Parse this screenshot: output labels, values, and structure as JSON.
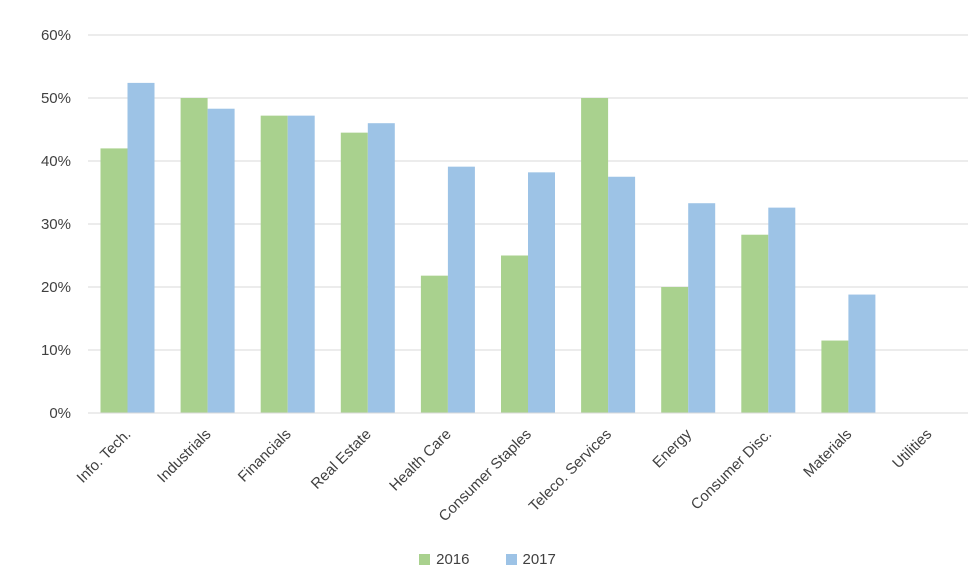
{
  "chart_data": {
    "type": "bar",
    "title": "",
    "xlabel": "",
    "ylabel": "",
    "categories": [
      "Info. Tech.",
      "Industrials",
      "Financials",
      "Real Estate",
      "Health Care",
      "Consumer Staples",
      "Teleco. Services",
      "Energy",
      "Consumer Disc.",
      "Materials",
      "Utilities"
    ],
    "series": [
      {
        "name": "2016",
        "color": "#a9d18e",
        "values": [
          42,
          50,
          47.2,
          44.5,
          21.8,
          25,
          50,
          20,
          28.3,
          11.5,
          0
        ]
      },
      {
        "name": "2017",
        "color": "#9dc3e6",
        "values": [
          52.4,
          48.3,
          47.2,
          46,
          39.1,
          38.2,
          37.5,
          33.3,
          32.6,
          18.8,
          0
        ]
      }
    ],
    "ylim": [
      0,
      60
    ],
    "yticks": [
      "0%",
      "10%",
      "20%",
      "30%",
      "40%",
      "50%",
      "60%"
    ],
    "grid": true,
    "legend_position": "bottom"
  }
}
